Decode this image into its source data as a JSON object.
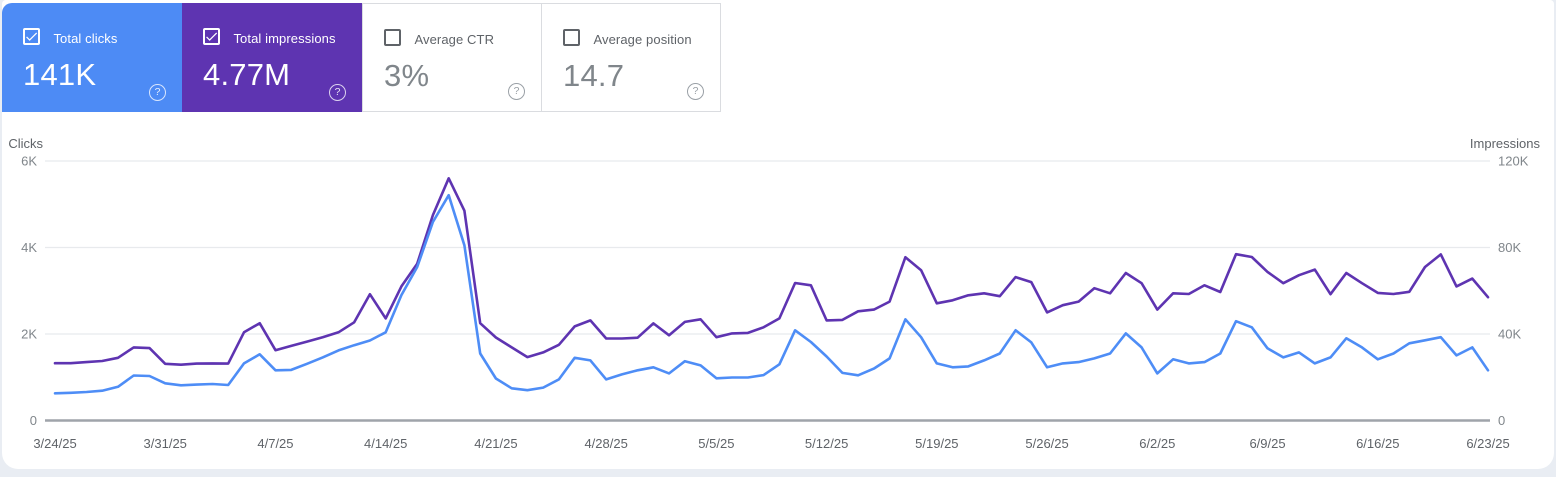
{
  "theme": {
    "page_background": "#e9edf3",
    "card_background": "#ffffff",
    "tile_border": "#dadce0",
    "clicks_color": "#4d8bf5",
    "impressions_color": "#5e34b1"
  },
  "icons": {
    "help_glyph": "?",
    "checkmark": "check-icon"
  },
  "cards": [
    {
      "label": "Total clicks",
      "value": "141K",
      "checked": true,
      "color": "#4d8bf5"
    },
    {
      "label": "Total impressions",
      "value": "4.77M",
      "checked": true,
      "color": "#5e34b1"
    },
    {
      "label": "Average CTR",
      "value": "3%",
      "checked": false,
      "color": "#ffffff"
    },
    {
      "label": "Average position",
      "value": "14.7",
      "checked": false,
      "color": "#ffffff"
    }
  ],
  "chart_data": {
    "type": "line",
    "x_tick_labels": [
      "3/24/25",
      "3/31/25",
      "4/7/25",
      "4/14/25",
      "4/21/25",
      "4/28/25",
      "5/5/25",
      "5/12/25",
      "5/19/25",
      "5/26/25",
      "6/2/25",
      "6/9/25",
      "6/16/25",
      "6/23/25"
    ],
    "points_per_series": 92,
    "date_range": {
      "start": "3/24/25",
      "end": "6/23/25"
    },
    "grid": true,
    "grid_color": "#e8eaed",
    "baseline_color": "#9fa4aa",
    "tick_label_color": "#80868b",
    "x_label_color": "#5f6368",
    "axis_title_color": "#5f6368",
    "left_axis": {
      "title": "Clicks",
      "max": 6000,
      "ticks": [
        "6K",
        "4K",
        "2K",
        "0"
      ]
    },
    "right_axis": {
      "title": "Impressions",
      "max": 120000,
      "ticks": [
        "120K",
        "80K",
        "40K",
        "0"
      ]
    },
    "series": [
      {
        "name": "Total clicks",
        "axis": "left",
        "color": "#4e8df6",
        "values": [
          630,
          640,
          660,
          690,
          780,
          1040,
          1030,
          860,
          815,
          830,
          845,
          820,
          1320,
          1530,
          1160,
          1170,
          1310,
          1460,
          1620,
          1740,
          1850,
          2040,
          2900,
          3550,
          4590,
          5210,
          4050,
          1550,
          970,
          745,
          700,
          760,
          950,
          1450,
          1390,
          950,
          1065,
          1160,
          1230,
          1090,
          1370,
          1275,
          975,
          995,
          995,
          1050,
          1300,
          2085,
          1815,
          1480,
          1100,
          1045,
          1200,
          1435,
          2340,
          1925,
          1320,
          1230,
          1250,
          1390,
          1550,
          2085,
          1805,
          1230,
          1320,
          1350,
          1435,
          1550,
          2015,
          1690,
          1090,
          1415,
          1320,
          1350,
          1550,
          2295,
          2155,
          1670,
          1460,
          1575,
          1320,
          1460,
          1900,
          1690,
          1415,
          1550,
          1785,
          1855,
          1925,
          1505,
          1690,
          1160
        ]
      },
      {
        "name": "Total impressions",
        "axis": "right",
        "color": "#5e34b1",
        "values": [
          26500,
          26500,
          27000,
          27500,
          29000,
          33800,
          33500,
          26200,
          25800,
          26300,
          26400,
          26300,
          40800,
          45000,
          32500,
          34500,
          36500,
          38500,
          40800,
          45400,
          58400,
          47200,
          62000,
          72500,
          95000,
          112000,
          97000,
          45000,
          38400,
          33800,
          29300,
          31500,
          35000,
          43500,
          46300,
          37900,
          37900,
          38300,
          44900,
          39400,
          45600,
          46800,
          38500,
          40300,
          40500,
          43100,
          47200,
          63600,
          62500,
          46300,
          46500,
          50500,
          51300,
          55000,
          75500,
          69500,
          54200,
          55600,
          57900,
          58800,
          57500,
          66300,
          64000,
          50000,
          53300,
          55000,
          61200,
          58800,
          68200,
          63500,
          51300,
          58800,
          58500,
          62500,
          59400,
          76900,
          75600,
          68700,
          63500,
          67200,
          69800,
          58400,
          68200,
          63500,
          59000,
          58500,
          59500,
          71000,
          76800,
          62000,
          65600,
          57000
        ]
      }
    ]
  }
}
